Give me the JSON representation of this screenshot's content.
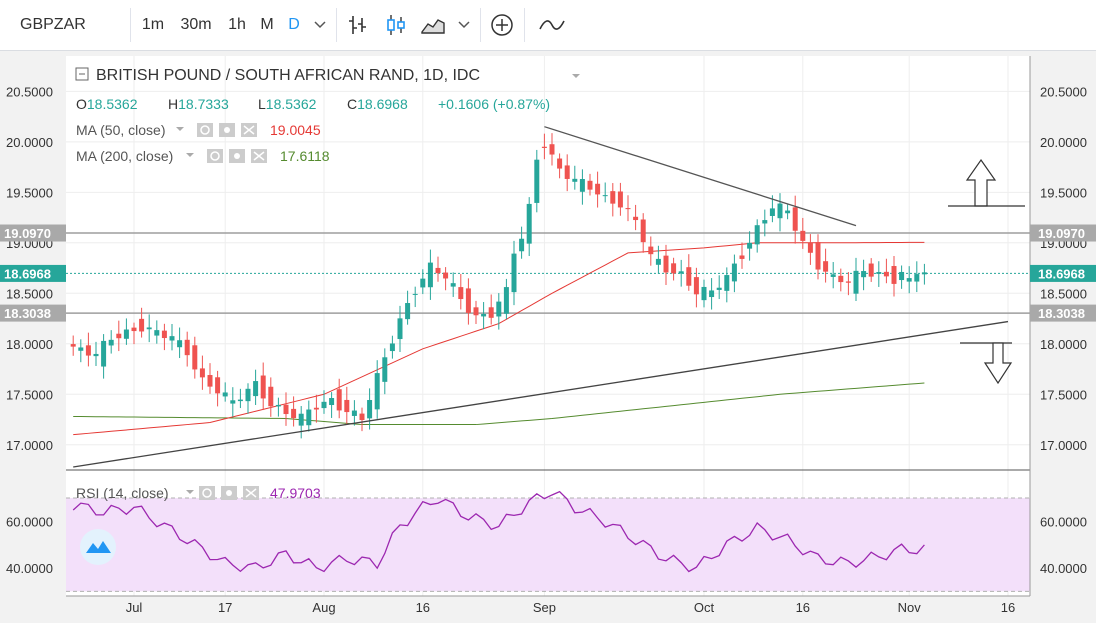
{
  "toolbar": {
    "symbol": "GBPZAR",
    "intervals": [
      "1m",
      "30m",
      "1h",
      "M",
      "D"
    ],
    "active_interval": "D",
    "icons": [
      "chevron-down-icon",
      "bar-chart-icon",
      "candlestick-icon",
      "area-chart-icon",
      "chevron-down-icon",
      "add-indicator-icon",
      "compare-line-icon"
    ]
  },
  "legend": {
    "title": "BRITISH POUND / SOUTH AFRICAN RAND, 1D, IDC",
    "o_label": "O",
    "o_value": "18.5362",
    "h_label": "H",
    "h_value": "18.7333",
    "l_label": "L",
    "l_value": "18.5362",
    "c_label": "C",
    "c_value": "18.6968",
    "change": "+0.1606 (+0.87%)",
    "ma50_label": "MA (50, close)",
    "ma50_value": "19.0045",
    "ma200_label": "MA (200, close)",
    "ma200_value": "17.6118",
    "rsi_label": "RSI (14, close)",
    "rsi_value": "47.9703"
  },
  "colors": {
    "up": "#26a69a",
    "down": "#ef5350",
    "ma50": "#e53935",
    "ma200": "#558b2f",
    "rsi": "#9c27b0",
    "rsi_band": "#f3e0fa",
    "accent": "#2196f3"
  },
  "chart_data": {
    "type": "candlestick",
    "y_axis": {
      "ticks": [
        "20.5000",
        "20.0000",
        "19.5000",
        "19.0000",
        "18.5000",
        "18.0000",
        "17.5000",
        "17.0000"
      ],
      "range": [
        16.75,
        20.85
      ]
    },
    "x_axis": {
      "ticks": [
        "Jul",
        "17",
        "Aug",
        "16",
        "Sep",
        "Oct",
        "16",
        "Nov",
        "16"
      ],
      "ticks_at": [
        0,
        12,
        25,
        38,
        54,
        75,
        88,
        102,
        115
      ]
    },
    "price_labels": {
      "resistance": "19.0970",
      "last": "18.6968",
      "support": "18.3038"
    },
    "levels": {
      "resistance": 19.097,
      "last": 18.6968,
      "support": 18.3038
    },
    "trendlines": [
      {
        "name": "upper",
        "from": [
          54,
          20.15
        ],
        "to": [
          95,
          19.17
        ]
      },
      {
        "name": "lower",
        "from": [
          -8,
          16.78
        ],
        "to": [
          115,
          18.22
        ]
      }
    ],
    "rsi_axis": {
      "ticks": [
        "60.0000",
        "40.0000"
      ],
      "range": [
        28,
        82
      ],
      "band": [
        30,
        70
      ]
    }
  }
}
